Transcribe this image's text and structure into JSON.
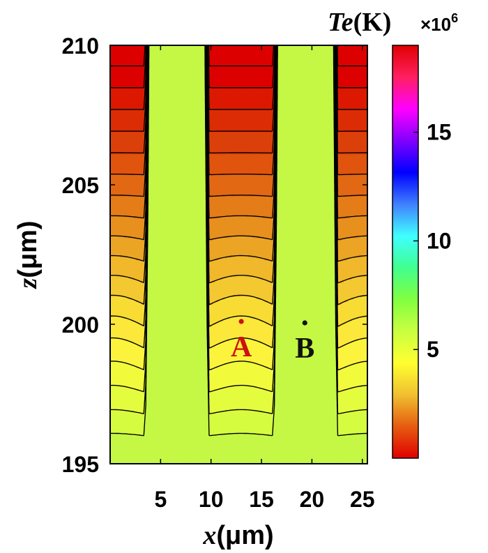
{
  "chart_data": {
    "type": "heatmap",
    "subtype": "filled-contour",
    "xlabel_var": "x",
    "xlabel_unit": "(μm)",
    "ylabel_var": "z",
    "ylabel_unit": "(μm)",
    "xlim": [
      0,
      25.5
    ],
    "ylim": [
      195,
      210
    ],
    "x_ticks": [
      5,
      10,
      15,
      20,
      25
    ],
    "y_ticks": [
      195,
      200,
      205,
      210
    ],
    "grid": false,
    "colorbar": {
      "title_var": "Te",
      "title_unit": "(K)",
      "multiplier": "×10",
      "multiplier_exp": "6",
      "range": [
        0,
        19
      ],
      "ticks": [
        5,
        10,
        15
      ],
      "colormap": "red-yellow-green-cyan-blue-magenta-red",
      "stops": [
        "#e00000",
        "#e65c10",
        "#f0c030",
        "#ffff30",
        "#c8ff40",
        "#80ff40",
        "#40ff90",
        "#40ffff",
        "#4080ff",
        "#0000ff",
        "#8000ff",
        "#ff00ff",
        "#ff2060",
        "#e00000"
      ]
    },
    "contours": {
      "count": 18,
      "color": "#000000",
      "bands": [
        "#dd0000",
        "#dd0000",
        "#dc1800",
        "#dc2c06",
        "#dc400a",
        "#e0540e",
        "#e26814",
        "#e47c18",
        "#e8901e",
        "#eca424",
        "#f0b82a",
        "#f4c830",
        "#f8dc34",
        "#fce83a",
        "#fcf43c",
        "#f2fa3c",
        "#e4fc3e",
        "#d6fc40",
        "#c4f844"
      ]
    },
    "points": [
      {
        "label": "A",
        "x": 13,
        "z": 200.1,
        "color": "#cc1111"
      },
      {
        "label": "B",
        "x": 19.3,
        "z": 200.05,
        "color": "#111111"
      }
    ]
  }
}
